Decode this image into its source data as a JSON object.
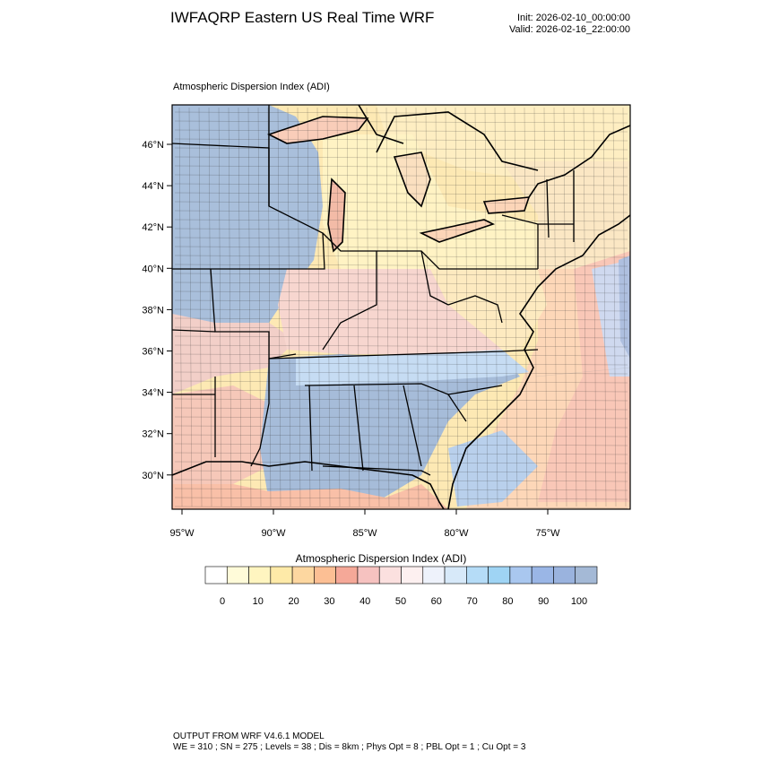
{
  "header": {
    "title": "IWFAQRP Eastern US Real Time WRF",
    "init": "Init: 2026-02-10_00:00:00",
    "valid": "Valid: 2026-02-16_22:00:00"
  },
  "map": {
    "subtitle": "Atmospheric Dispersion Index   (ADI)",
    "lat_labels": [
      "46°N",
      "44°N",
      "42°N",
      "40°N",
      "38°N",
      "36°N",
      "34°N",
      "32°N",
      "30°N"
    ],
    "lon_labels": [
      "95°W",
      "90°W",
      "85°W",
      "80°W",
      "75°W"
    ],
    "field": "Atmospheric Dispersion Index"
  },
  "colorbar": {
    "title": "Atmospheric Dispersion Index  (ADI)",
    "tick_labels": [
      "0",
      "10",
      "20",
      "30",
      "40",
      "50",
      "60",
      "70",
      "80",
      "90",
      "100"
    ],
    "colors": [
      "#ffffff",
      "#fffbd9",
      "#fff5c0",
      "#feeaa8",
      "#fdd7a0",
      "#fcbf94",
      "#f5a898",
      "#f6c2c0",
      "#fbe0df",
      "#fdf0f0",
      "#eef2fb",
      "#d7e9f9",
      "#b5dcf7",
      "#9fd4f4",
      "#a9c7ef",
      "#9ab6e6",
      "#9ab3de",
      "#a4b9d6"
    ]
  },
  "footer": {
    "line1": "OUTPUT FROM WRF V4.6.1 MODEL",
    "line2": "WE = 310 ; SN = 275 ; Levels = 38 ; Dis = 8km ; Phys Opt = 8 ; PBL Opt = 1 ; Cu Opt = 3"
  }
}
